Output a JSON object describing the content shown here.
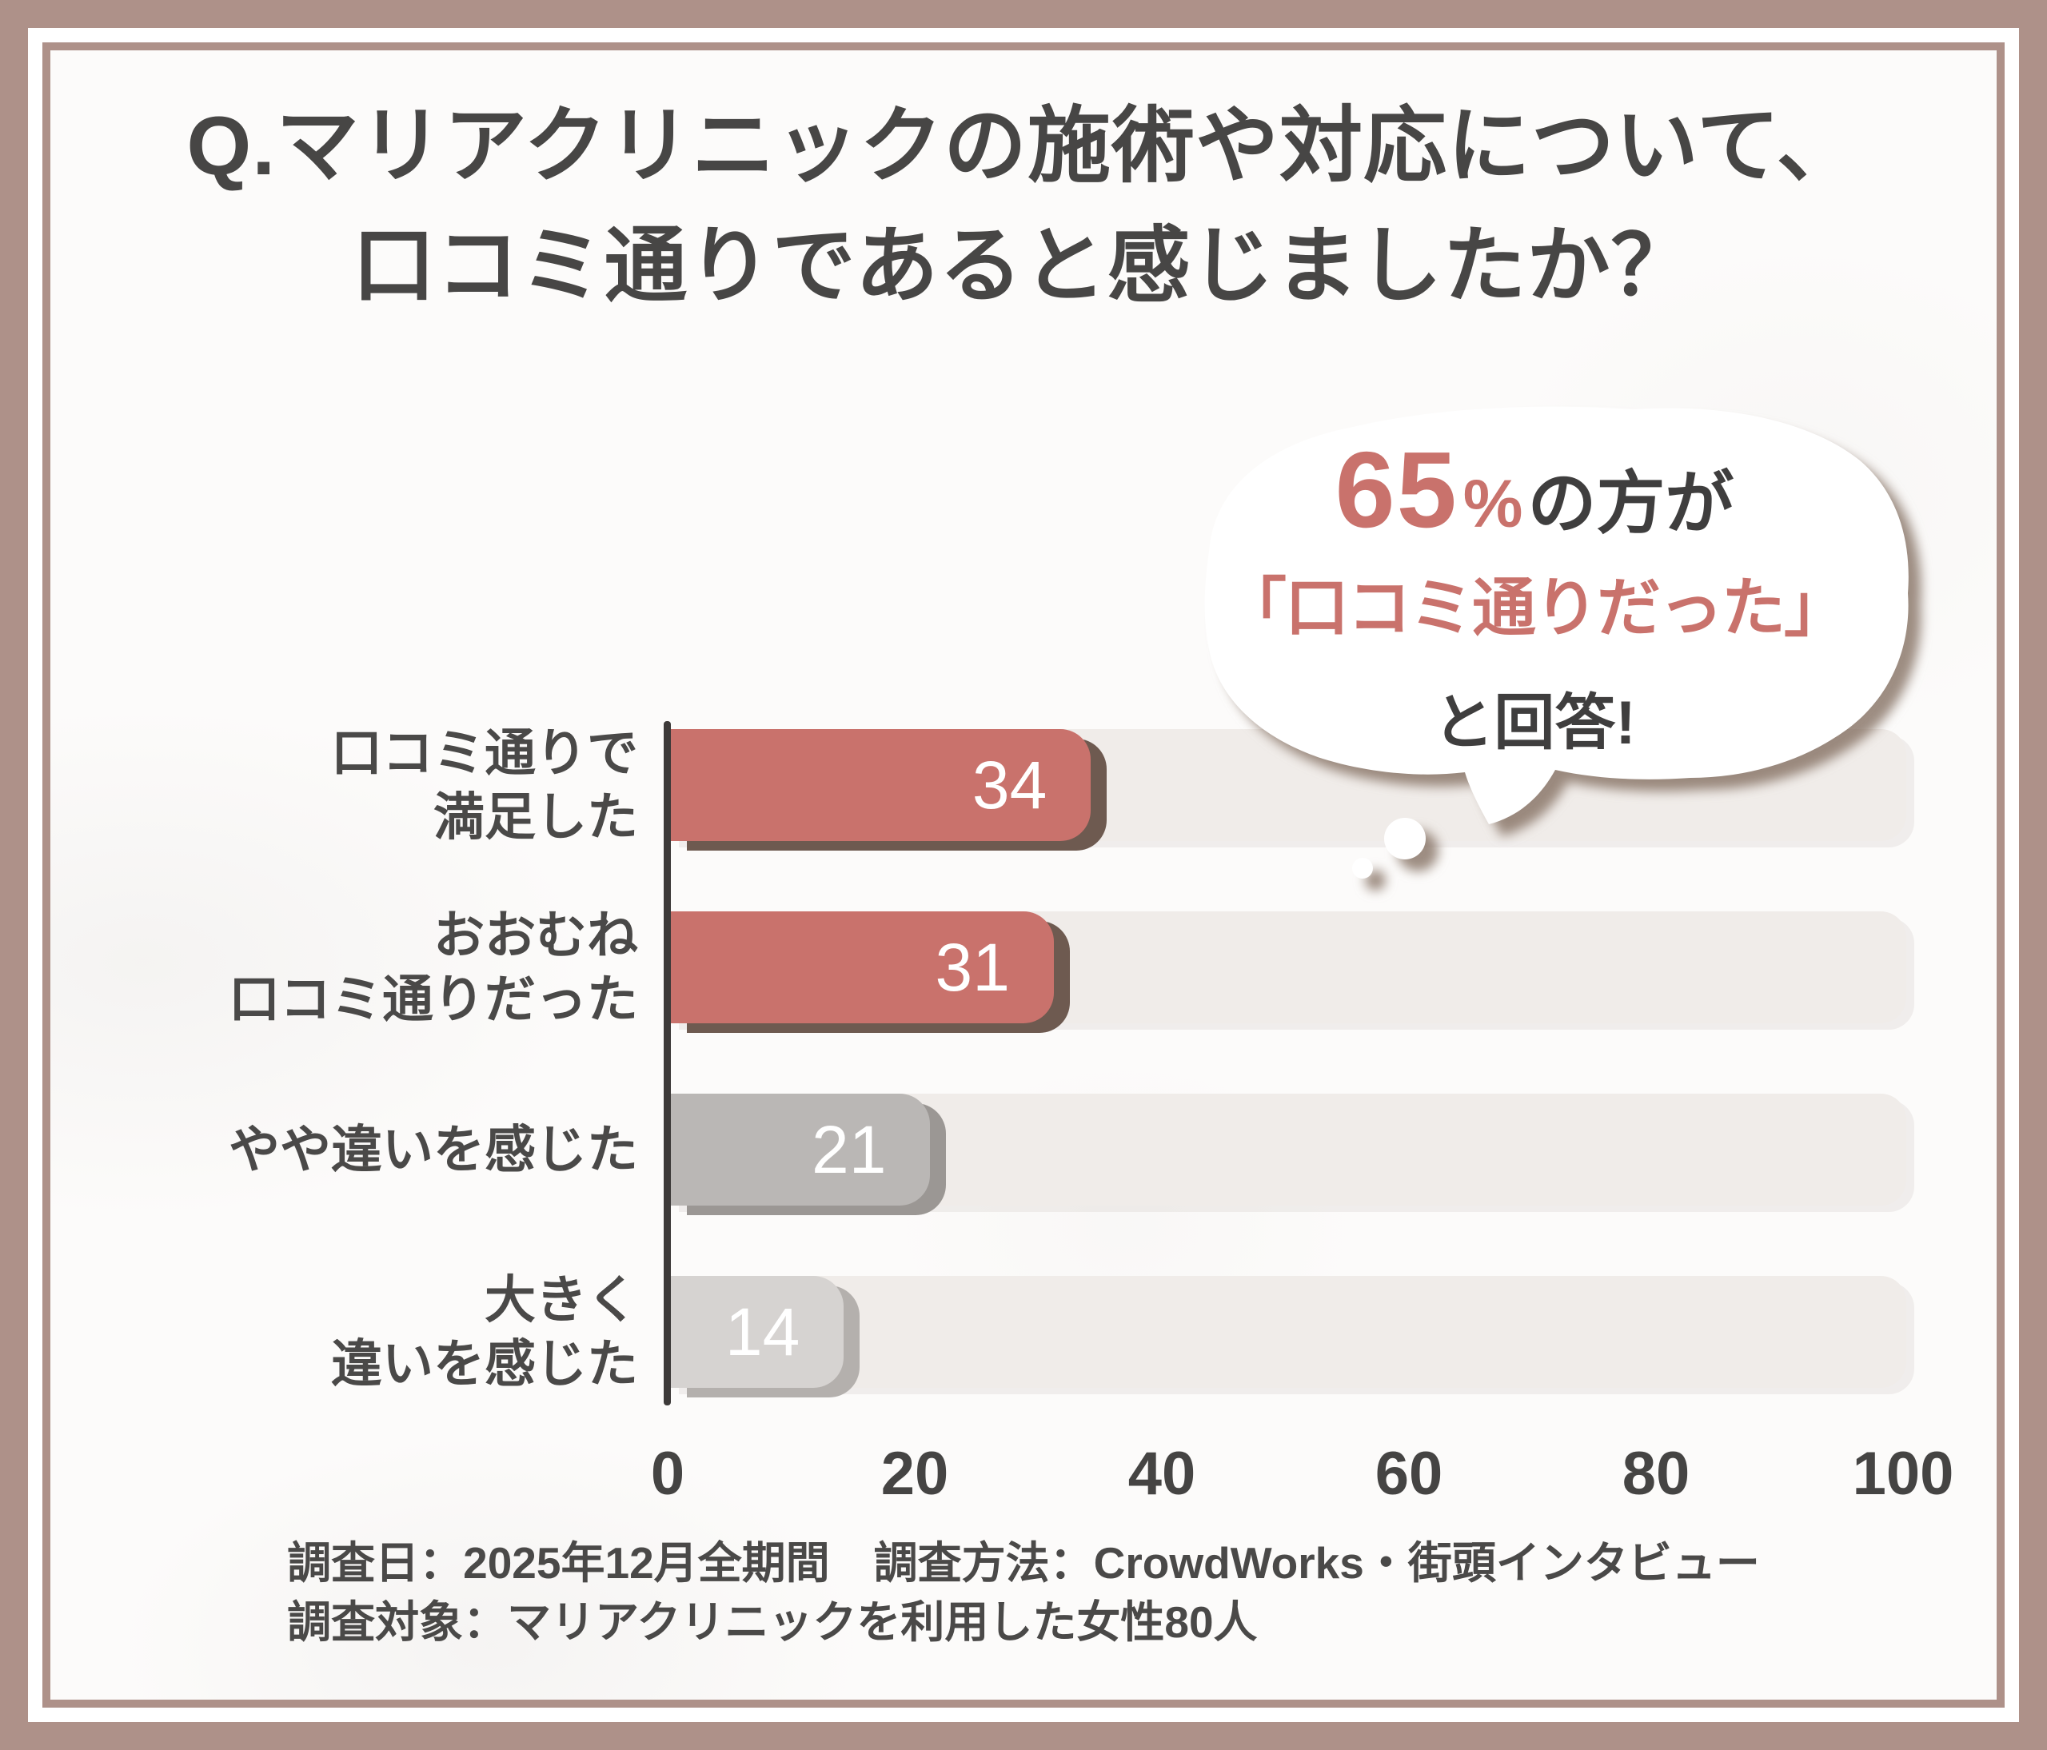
{
  "title": {
    "line1": "Q.マリアクリニックの施術や対応について、",
    "line2": "口コミ通りであると感じましたか？"
  },
  "bubble": {
    "number": "65",
    "percent_sign": "%",
    "suffix": "の方が",
    "quote": "「口コミ通りだった」",
    "answer": "と回答!"
  },
  "chart": {
    "x_ticks": [
      0,
      20,
      40,
      60,
      80,
      100
    ],
    "x_max": 100,
    "rows": [
      {
        "label_lines": [
          "口コミ通りで",
          "満足した"
        ],
        "value": 34,
        "fill": "#C9726C",
        "shadow": "#6E5A50"
      },
      {
        "label_lines": [
          "おおむね",
          "口コミ通りだった"
        ],
        "value": 31,
        "fill": "#C9726C",
        "shadow": "#6E5A50"
      },
      {
        "label_lines": [
          "やや違いを感じた"
        ],
        "value": 21,
        "fill": "#BAB7B5",
        "shadow": "#9B9794"
      },
      {
        "label_lines": [
          "大きく",
          "違いを感じた"
        ],
        "value": 14,
        "fill": "#D6D3D1",
        "shadow": "#B4B0AD"
      }
    ]
  },
  "footer": {
    "line1": "調査日：2025年12月全期間　調査方法：CrowdWorks・街頭インタビュー",
    "line2": "調査対象：マリアクリニックを利用した女性80人"
  },
  "colors": {
    "accent": "#C9726C",
    "frame": "#AE9189",
    "track": "#F0ECE9",
    "text_dark": "#474645",
    "bar_text": "#FFFFFF",
    "bubble_shadow": "#7D685A",
    "axis": "#3D3A39"
  },
  "chart_data": {
    "type": "bar",
    "orientation": "horizontal",
    "title": "Q.マリアクリニックの施術や対応について、口コミ通りであると感じましたか？",
    "categories": [
      "口コミ通りで満足した",
      "おおむね口コミ通りだった",
      "やや違いを感じた",
      "大きく違いを感じた"
    ],
    "values": [
      34,
      31,
      21,
      14
    ],
    "unit": "%",
    "xlabel": "",
    "ylabel": "",
    "xlim": [
      0,
      100
    ],
    "x_ticks": [
      0,
      20,
      40,
      60,
      80,
      100
    ],
    "grid": false,
    "legend": "none",
    "annotation": "65%の方が「口コミ通りだった」と回答!",
    "source_note": "調査日：2025年12月全期間 調査方法：CrowdWorks・街頭インタビュー 調査対象：マリアクリニックを利用した女性80人"
  }
}
